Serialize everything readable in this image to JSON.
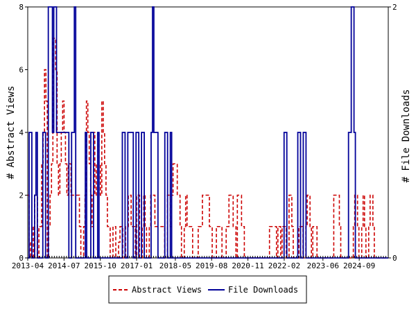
{
  "chart_data": {
    "type": "line",
    "ylabel_left": "# Abstract Views",
    "ylabel_right": "# File Downloads",
    "ylim_left": [
      0,
      8
    ],
    "ylim_right": [
      0,
      2
    ],
    "yticks_left": [
      "0",
      "2",
      "4",
      "6",
      "8"
    ],
    "yticks_right": [
      "0",
      "2"
    ],
    "x_tick_labels": [
      "2013-04",
      "2014-07",
      "2015-10",
      "2017-01",
      "2018-05",
      "2019-08",
      "2020-11",
      "2022-02",
      "2023-06",
      "2024-09"
    ],
    "x_range": [
      "2013-04",
      "2025-09"
    ],
    "grid": false,
    "legend_position": "bottom",
    "series": [
      {
        "name": "Abstract Views",
        "axis": "left",
        "color": "#cc0000",
        "style": "dashed",
        "values": [
          2,
          0,
          0.5,
          1,
          0,
          2,
          2,
          0,
          1,
          1,
          3,
          4,
          6,
          5,
          0,
          1,
          2,
          3,
          7,
          7,
          6,
          3,
          2,
          3,
          4,
          5,
          4,
          3,
          2,
          3,
          3,
          2,
          2,
          2,
          2,
          2,
          2,
          1,
          0,
          0,
          1,
          2,
          5,
          4,
          3,
          2,
          1,
          4,
          2,
          3,
          4,
          3,
          2,
          5,
          4,
          3,
          2,
          1,
          1,
          0,
          0,
          1,
          1,
          0,
          0,
          0.5,
          1,
          1,
          0,
          0,
          1,
          1,
          2,
          2,
          1,
          1,
          1,
          0,
          2,
          2,
          0,
          0,
          1,
          2,
          1,
          0,
          0,
          1,
          2,
          2,
          2,
          1,
          1,
          1,
          1,
          1,
          1,
          1,
          0,
          0,
          2,
          2,
          1,
          2,
          3,
          3,
          3,
          2,
          2,
          1,
          0,
          0,
          1,
          2,
          1,
          1,
          1,
          1,
          0,
          0,
          0,
          0,
          1,
          1,
          1,
          2,
          2,
          2,
          2,
          2,
          1,
          1,
          0,
          0,
          0,
          1,
          1,
          1,
          1,
          0,
          0,
          0,
          1,
          1,
          2,
          2,
          2,
          1,
          1,
          0,
          2,
          2,
          2,
          1,
          1,
          0,
          0,
          0,
          0,
          0,
          0,
          0,
          0,
          0,
          0,
          0,
          0,
          0,
          0,
          0,
          0,
          0,
          0,
          1,
          1,
          1,
          1,
          1,
          0,
          1,
          1,
          0,
          1,
          1,
          1,
          0,
          0,
          2,
          2,
          1,
          0,
          0,
          0,
          0,
          1,
          1,
          1,
          0,
          0,
          1,
          2,
          2,
          1,
          0,
          1,
          1,
          1,
          0,
          0,
          0,
          0,
          0,
          0,
          0,
          0,
          0,
          0,
          0,
          0,
          2,
          2,
          2,
          2,
          1,
          0,
          0,
          0,
          0,
          0,
          0,
          0,
          0,
          0,
          1,
          2,
          2,
          1,
          0,
          0,
          1,
          2,
          1,
          0,
          0,
          1,
          2,
          2,
          1,
          0,
          0,
          0,
          0,
          0,
          0,
          0,
          0,
          0,
          0
        ]
      },
      {
        "name": "File Downloads",
        "axis": "right",
        "color": "#000099",
        "style": "solid",
        "values": [
          0,
          1,
          1,
          0,
          0,
          0.5,
          1,
          0,
          0,
          0,
          0,
          1,
          1,
          0,
          0,
          2,
          2,
          2,
          1,
          2,
          2,
          1,
          1,
          1,
          1,
          1,
          1,
          1,
          1,
          1,
          0,
          0,
          1,
          1,
          2,
          0,
          0,
          0,
          0,
          0,
          0,
          0,
          1,
          0,
          0,
          0,
          1,
          1,
          0,
          0,
          0,
          1,
          0,
          0,
          0,
          0,
          0,
          0,
          0,
          0,
          0,
          0,
          0,
          0,
          0,
          0,
          0,
          0,
          0,
          1,
          1,
          0,
          0,
          1,
          1,
          1,
          1,
          0,
          0,
          1,
          1,
          0,
          0,
          1,
          1,
          0,
          0,
          0,
          0,
          0,
          1,
          2,
          1,
          1,
          1,
          0,
          0,
          0,
          0,
          0,
          1,
          1,
          0,
          0,
          1,
          0,
          0,
          0,
          0,
          0,
          0,
          0,
          0,
          0,
          0,
          0,
          0,
          0,
          0,
          0,
          0,
          0,
          0,
          0,
          0,
          0,
          0,
          0,
          0,
          0,
          0,
          0,
          0,
          0,
          0,
          0,
          0,
          0,
          0,
          0,
          0,
          0,
          0,
          0,
          0,
          0,
          0,
          0,
          0,
          0,
          0,
          0,
          0,
          0,
          0,
          0,
          0,
          0,
          0,
          0,
          0,
          0,
          0,
          0,
          0,
          0,
          0,
          0,
          0,
          0,
          0,
          0,
          0,
          0,
          0,
          0,
          0,
          0,
          0,
          0,
          0,
          0,
          0,
          0,
          0,
          0,
          0,
          1,
          1,
          0,
          0,
          0,
          0,
          0,
          0,
          0,
          0,
          1,
          1,
          0,
          0,
          1,
          1,
          0,
          0,
          0,
          0,
          0,
          0,
          0,
          0,
          0,
          0,
          0,
          0,
          0,
          0,
          0,
          0,
          0,
          0,
          0,
          0,
          0,
          0,
          0,
          0,
          0,
          0,
          0,
          0,
          0,
          0,
          0,
          1,
          1,
          2,
          2,
          1,
          0,
          0,
          0,
          0,
          0,
          0,
          0,
          0,
          0,
          0,
          0,
          0,
          0,
          0,
          0,
          0,
          0,
          0,
          0,
          0,
          0,
          0,
          0,
          0
        ]
      }
    ]
  },
  "legend": {
    "items": [
      "Abstract Views",
      "File Downloads"
    ]
  }
}
